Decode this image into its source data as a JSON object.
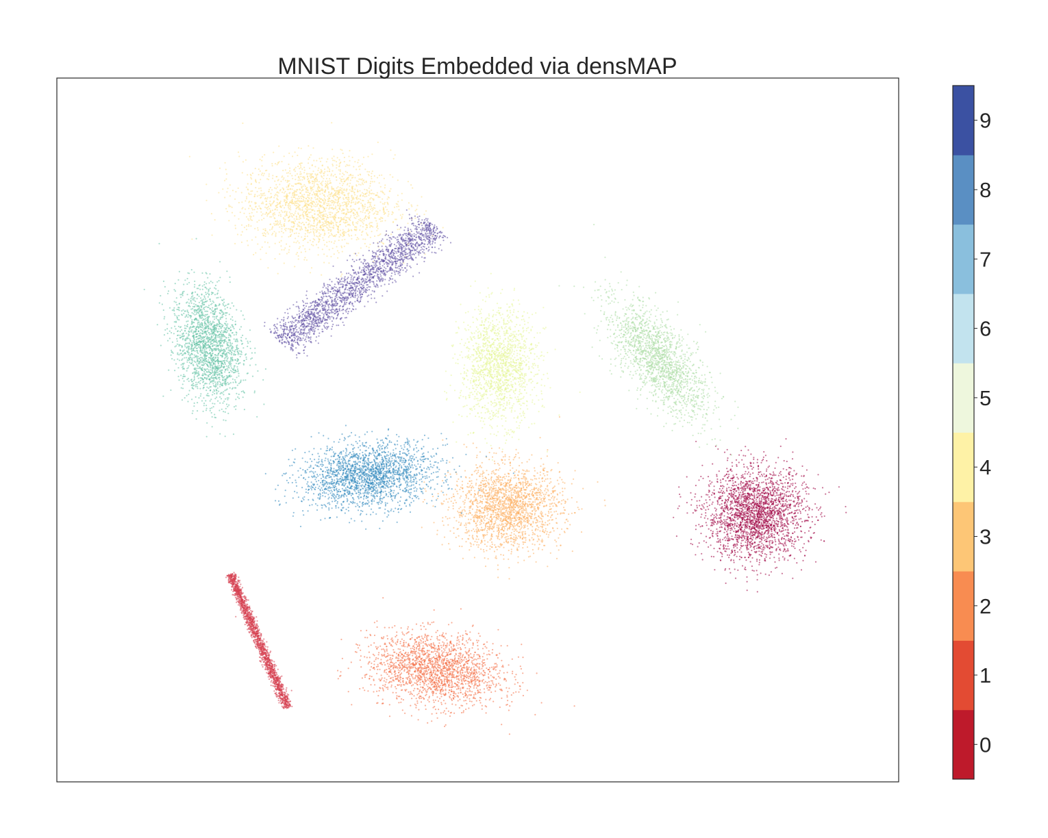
{
  "chart_data": {
    "type": "scatter",
    "title": "MNIST Digits Embedded via densMAP",
    "xlabel": "",
    "ylabel": "",
    "axes_ticks_visible": false,
    "grid": false,
    "xlim": [
      0,
      100
    ],
    "ylim": [
      0,
      100
    ],
    "colorbar": {
      "range": [
        -0.5,
        9.5
      ],
      "ticks": [
        "0",
        "1",
        "2",
        "3",
        "4",
        "5",
        "6",
        "7",
        "8",
        "9"
      ],
      "colors": [
        "#be1a2b",
        "#e34b33",
        "#f88c51",
        "#fdc676",
        "#fef2a6",
        "#eef7dd",
        "#c2e3ee",
        "#8abfdd",
        "#5a8fc3",
        "#3b51a2"
      ]
    },
    "series": [
      {
        "label": "0",
        "color": "#9e0142",
        "shape": "blob",
        "center": [
          83.0,
          38.0
        ],
        "spread": [
          6.0,
          6.5
        ],
        "count": 2400
      },
      {
        "label": "1",
        "color": "#d53e4f",
        "shape": "line",
        "start": [
          20.6,
          29.6
        ],
        "end": [
          27.4,
          10.5
        ],
        "width": 0.6,
        "count": 1700
      },
      {
        "label": "2",
        "color": "#f46d43",
        "shape": "blob",
        "center": [
          45.0,
          16.0
        ],
        "spread": [
          8.0,
          5.0
        ],
        "angle": -10,
        "count": 2000
      },
      {
        "label": "3",
        "color": "#fdae61",
        "shape": "blob",
        "center": [
          53.5,
          39.0
        ],
        "spread": [
          6.5,
          6.0
        ],
        "count": 2000
      },
      {
        "label": "4",
        "color": "#fee08b",
        "shape": "blob",
        "center": [
          31.0,
          82.0
        ],
        "spread": [
          9.0,
          6.5
        ],
        "count": 2000
      },
      {
        "label": "5",
        "color": "#e6f598",
        "shape": "blob",
        "center": [
          52.5,
          59.0
        ],
        "spread": [
          4.5,
          8.0
        ],
        "angle": 0,
        "count": 1600
      },
      {
        "label": "6",
        "color": "#abdda4",
        "shape": "blob",
        "center": [
          71.5,
          60.0
        ],
        "spread": [
          3.8,
          9.5
        ],
        "angle": 32,
        "count": 1700
      },
      {
        "label": "7",
        "color": "#66c2a5",
        "shape": "blob",
        "center": [
          18.0,
          62.0
        ],
        "spread": [
          3.8,
          8.5
        ],
        "angle": 8,
        "count": 1900
      },
      {
        "label": "8",
        "color": "#3288bd",
        "shape": "blob",
        "center": [
          37.0,
          43.5
        ],
        "spread": [
          8.0,
          4.5
        ],
        "angle": 8,
        "count": 2100
      },
      {
        "label": "9",
        "color": "#5e4fa2",
        "shape": "line",
        "start": [
          26.5,
          62.5
        ],
        "end": [
          45.0,
          79.0
        ],
        "width": 2.4,
        "count": 2000
      }
    ]
  }
}
